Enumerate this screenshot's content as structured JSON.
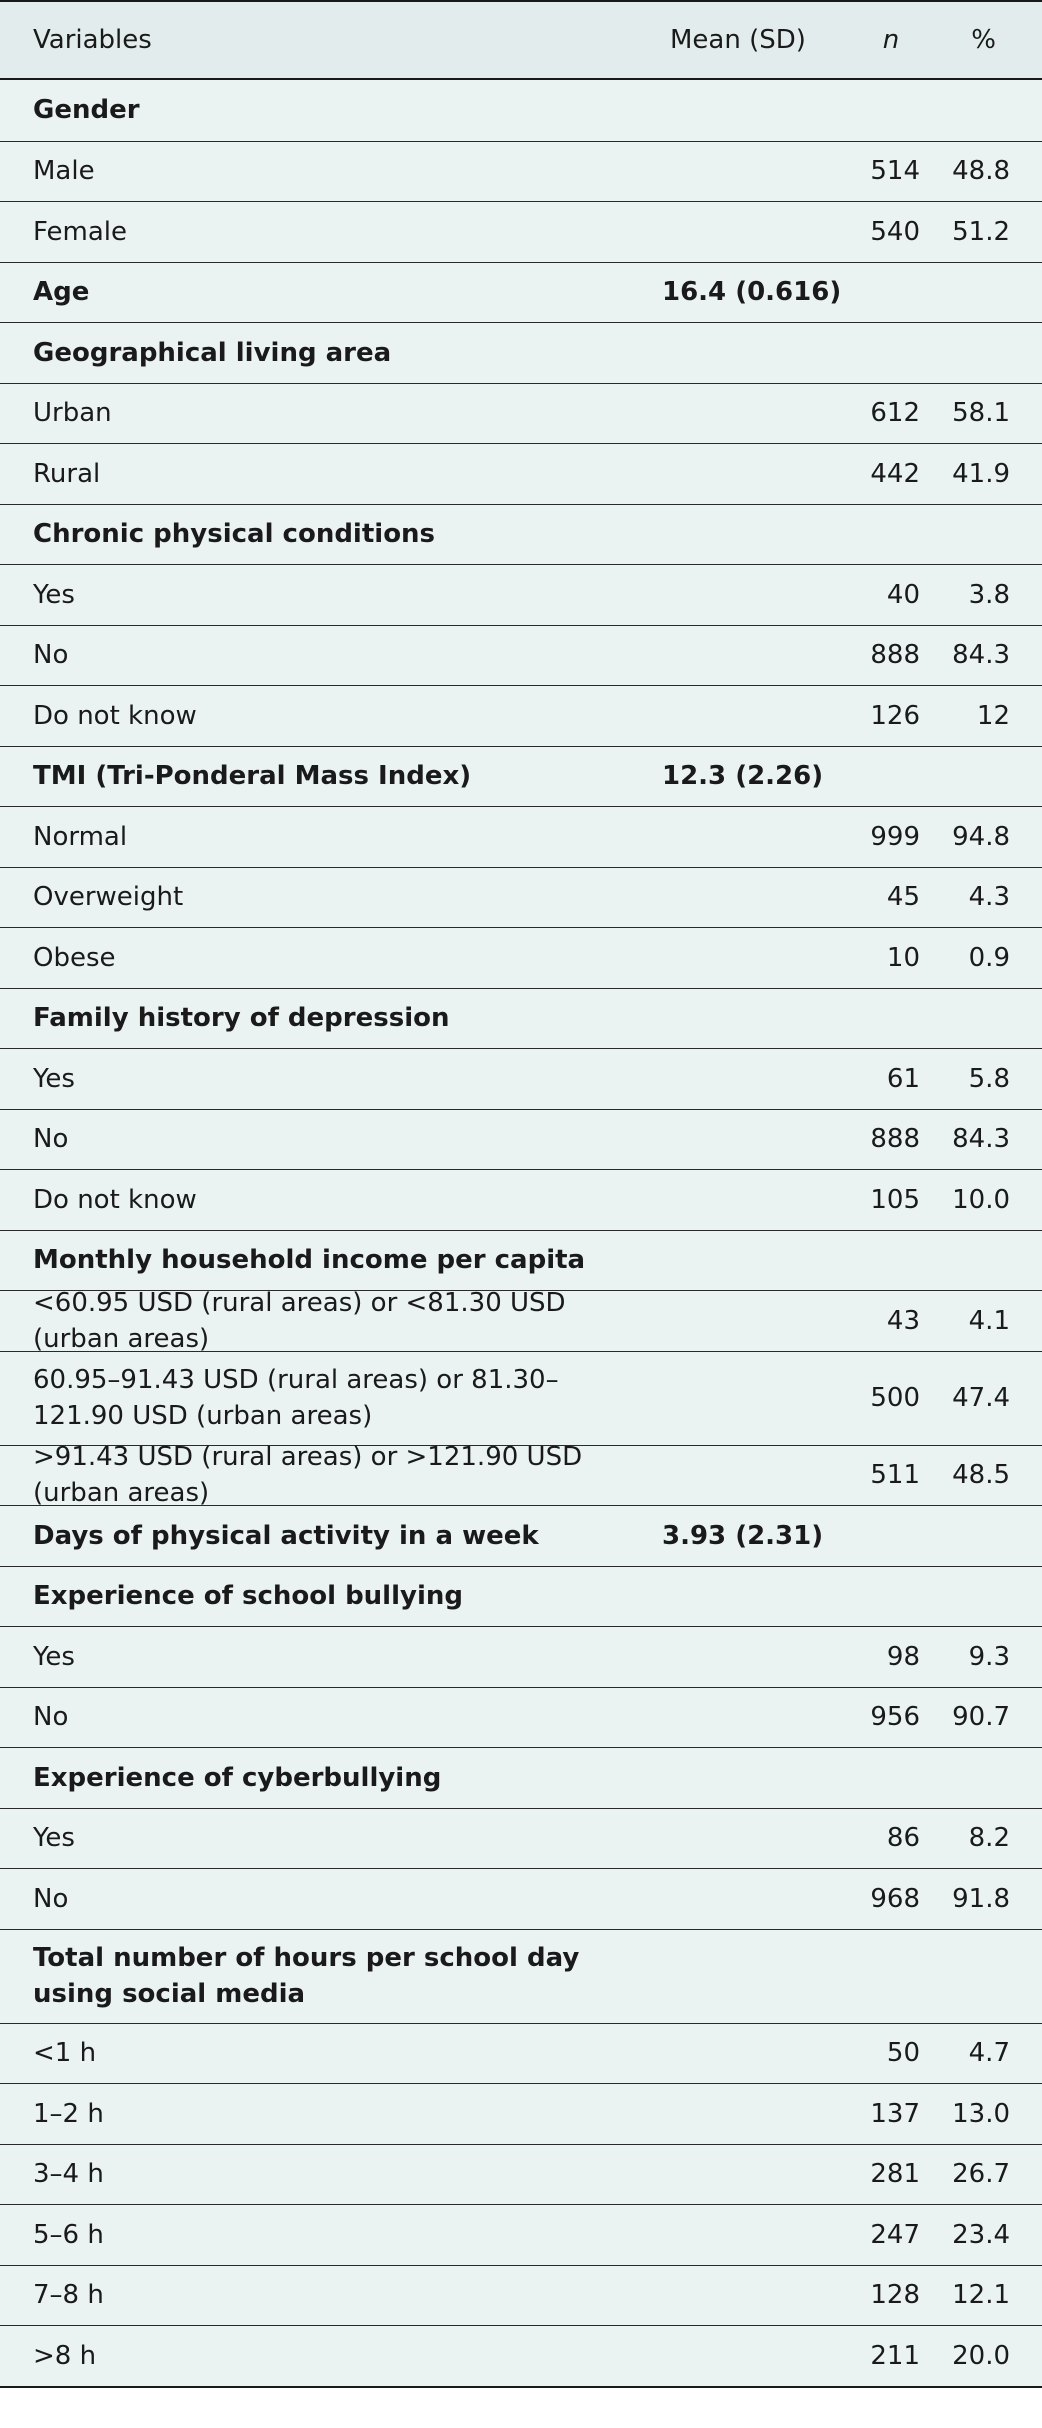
{
  "header": {
    "variables": "Variables",
    "mean": "Mean (SD)",
    "n": "n",
    "pct": "%"
  },
  "rows": [
    {
      "label": "Gender",
      "type": "group",
      "mean": "",
      "n": "",
      "pct": ""
    },
    {
      "label": "Male",
      "type": "item",
      "mean": "",
      "n": "514",
      "pct": "48.8"
    },
    {
      "label": "Female",
      "type": "item",
      "mean": "",
      "n": "540",
      "pct": "51.2"
    },
    {
      "label": "Age",
      "type": "group",
      "mean": "16.4 (0.616)",
      "n": "",
      "pct": ""
    },
    {
      "label": "Geographical living area",
      "type": "group",
      "mean": "",
      "n": "",
      "pct": ""
    },
    {
      "label": "Urban",
      "type": "item",
      "mean": "",
      "n": "612",
      "pct": "58.1"
    },
    {
      "label": "Rural",
      "type": "item",
      "mean": "",
      "n": "442",
      "pct": "41.9"
    },
    {
      "label": "Chronic physical conditions",
      "type": "group",
      "mean": "",
      "n": "",
      "pct": ""
    },
    {
      "label": "Yes",
      "type": "item",
      "mean": "",
      "n": "40",
      "pct": "3.8"
    },
    {
      "label": "No",
      "type": "item",
      "mean": "",
      "n": "888",
      "pct": "84.3"
    },
    {
      "label": "Do not know",
      "type": "item",
      "mean": "",
      "n": "126",
      "pct": "12"
    },
    {
      "label": "TMI (Tri-Ponderal Mass Index)",
      "type": "group",
      "mean": "12.3 (2.26)",
      "n": "",
      "pct": ""
    },
    {
      "label": "Normal",
      "type": "item",
      "mean": "",
      "n": "999",
      "pct": "94.8"
    },
    {
      "label": "Overweight",
      "type": "item",
      "mean": "",
      "n": "45",
      "pct": "4.3"
    },
    {
      "label": "Obese",
      "type": "item",
      "mean": "",
      "n": "10",
      "pct": "0.9"
    },
    {
      "label": "Family history of depression",
      "type": "group",
      "mean": "",
      "n": "",
      "pct": ""
    },
    {
      "label": "Yes",
      "type": "item",
      "mean": "",
      "n": "61",
      "pct": "5.8"
    },
    {
      "label": "No",
      "type": "item",
      "mean": "",
      "n": "888",
      "pct": "84.3"
    },
    {
      "label": "Do not know",
      "type": "item",
      "mean": "",
      "n": "105",
      "pct": "10.0"
    },
    {
      "label": "Monthly household income per capita",
      "type": "group",
      "mean": "",
      "n": "",
      "pct": ""
    },
    {
      "label": "<60.95 USD (rural areas) or <81.30 USD (urban areas)",
      "type": "item",
      "mean": "",
      "n": "43",
      "pct": "4.1"
    },
    {
      "label": "60.95–91.43 USD (rural areas) or 81.30–121.90 USD (urban areas)",
      "type": "item",
      "tall": true,
      "mean": "",
      "n": "500",
      "pct": "47.4"
    },
    {
      "label": ">91.43 USD (rural areas) or >121.90 USD (urban areas)",
      "type": "item",
      "mean": "",
      "n": "511",
      "pct": "48.5"
    },
    {
      "label": "Days of physical activity in a week",
      "type": "group",
      "mean": "3.93 (2.31)",
      "n": "",
      "pct": ""
    },
    {
      "label": "Experience of school bullying",
      "type": "group",
      "mean": "",
      "n": "",
      "pct": ""
    },
    {
      "label": "Yes",
      "type": "item",
      "mean": "",
      "n": "98",
      "pct": "9.3"
    },
    {
      "label": "No",
      "type": "item",
      "mean": "",
      "n": "956",
      "pct": "90.7"
    },
    {
      "label": "Experience of cyberbullying",
      "type": "group",
      "mean": "",
      "n": "",
      "pct": ""
    },
    {
      "label": "Yes",
      "type": "item",
      "mean": "",
      "n": "86",
      "pct": "8.2"
    },
    {
      "label": "No",
      "type": "item",
      "mean": "",
      "n": "968",
      "pct": "91.8"
    },
    {
      "label": "Total number of hours per school day using social media",
      "type": "group",
      "tall": true,
      "mean": "",
      "n": "",
      "pct": ""
    },
    {
      "label": "<1 h",
      "type": "item",
      "mean": "",
      "n": "50",
      "pct": "4.7"
    },
    {
      "label": "1–2 h",
      "type": "item",
      "mean": "",
      "n": "137",
      "pct": "13.0"
    },
    {
      "label": "3–4 h",
      "type": "item",
      "mean": "",
      "n": "281",
      "pct": "26.7"
    },
    {
      "label": "5–6 h",
      "type": "item",
      "mean": "",
      "n": "247",
      "pct": "23.4"
    },
    {
      "label": "7–8 h",
      "type": "item",
      "mean": "",
      "n": "128",
      "pct": "12.1"
    },
    {
      "label": ">8 h",
      "type": "item",
      "mean": "",
      "n": "211",
      "pct": "20.0"
    }
  ]
}
